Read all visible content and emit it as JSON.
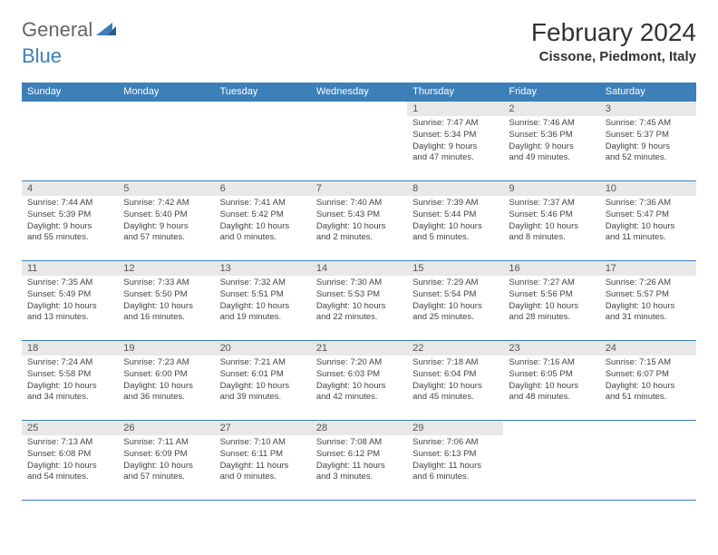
{
  "logo": {
    "text1": "General",
    "text2": "Blue"
  },
  "title": "February 2024",
  "location": "Cissone, Piedmont, Italy",
  "colors": {
    "header_bg": "#3d7fb8",
    "header_text": "#ffffff",
    "daynum_bg": "#e8e8e8",
    "row_border": "#3d7fb8",
    "body_text": "#444444"
  },
  "day_names": [
    "Sunday",
    "Monday",
    "Tuesday",
    "Wednesday",
    "Thursday",
    "Friday",
    "Saturday"
  ],
  "weeks": [
    [
      null,
      null,
      null,
      null,
      {
        "n": "1",
        "sunrise": "Sunrise: 7:47 AM",
        "sunset": "Sunset: 5:34 PM",
        "daylight1": "Daylight: 9 hours",
        "daylight2": "and 47 minutes."
      },
      {
        "n": "2",
        "sunrise": "Sunrise: 7:46 AM",
        "sunset": "Sunset: 5:36 PM",
        "daylight1": "Daylight: 9 hours",
        "daylight2": "and 49 minutes."
      },
      {
        "n": "3",
        "sunrise": "Sunrise: 7:45 AM",
        "sunset": "Sunset: 5:37 PM",
        "daylight1": "Daylight: 9 hours",
        "daylight2": "and 52 minutes."
      }
    ],
    [
      {
        "n": "4",
        "sunrise": "Sunrise: 7:44 AM",
        "sunset": "Sunset: 5:39 PM",
        "daylight1": "Daylight: 9 hours",
        "daylight2": "and 55 minutes."
      },
      {
        "n": "5",
        "sunrise": "Sunrise: 7:42 AM",
        "sunset": "Sunset: 5:40 PM",
        "daylight1": "Daylight: 9 hours",
        "daylight2": "and 57 minutes."
      },
      {
        "n": "6",
        "sunrise": "Sunrise: 7:41 AM",
        "sunset": "Sunset: 5:42 PM",
        "daylight1": "Daylight: 10 hours",
        "daylight2": "and 0 minutes."
      },
      {
        "n": "7",
        "sunrise": "Sunrise: 7:40 AM",
        "sunset": "Sunset: 5:43 PM",
        "daylight1": "Daylight: 10 hours",
        "daylight2": "and 2 minutes."
      },
      {
        "n": "8",
        "sunrise": "Sunrise: 7:39 AM",
        "sunset": "Sunset: 5:44 PM",
        "daylight1": "Daylight: 10 hours",
        "daylight2": "and 5 minutes."
      },
      {
        "n": "9",
        "sunrise": "Sunrise: 7:37 AM",
        "sunset": "Sunset: 5:46 PM",
        "daylight1": "Daylight: 10 hours",
        "daylight2": "and 8 minutes."
      },
      {
        "n": "10",
        "sunrise": "Sunrise: 7:36 AM",
        "sunset": "Sunset: 5:47 PM",
        "daylight1": "Daylight: 10 hours",
        "daylight2": "and 11 minutes."
      }
    ],
    [
      {
        "n": "11",
        "sunrise": "Sunrise: 7:35 AM",
        "sunset": "Sunset: 5:49 PM",
        "daylight1": "Daylight: 10 hours",
        "daylight2": "and 13 minutes."
      },
      {
        "n": "12",
        "sunrise": "Sunrise: 7:33 AM",
        "sunset": "Sunset: 5:50 PM",
        "daylight1": "Daylight: 10 hours",
        "daylight2": "and 16 minutes."
      },
      {
        "n": "13",
        "sunrise": "Sunrise: 7:32 AM",
        "sunset": "Sunset: 5:51 PM",
        "daylight1": "Daylight: 10 hours",
        "daylight2": "and 19 minutes."
      },
      {
        "n": "14",
        "sunrise": "Sunrise: 7:30 AM",
        "sunset": "Sunset: 5:53 PM",
        "daylight1": "Daylight: 10 hours",
        "daylight2": "and 22 minutes."
      },
      {
        "n": "15",
        "sunrise": "Sunrise: 7:29 AM",
        "sunset": "Sunset: 5:54 PM",
        "daylight1": "Daylight: 10 hours",
        "daylight2": "and 25 minutes."
      },
      {
        "n": "16",
        "sunrise": "Sunrise: 7:27 AM",
        "sunset": "Sunset: 5:56 PM",
        "daylight1": "Daylight: 10 hours",
        "daylight2": "and 28 minutes."
      },
      {
        "n": "17",
        "sunrise": "Sunrise: 7:26 AM",
        "sunset": "Sunset: 5:57 PM",
        "daylight1": "Daylight: 10 hours",
        "daylight2": "and 31 minutes."
      }
    ],
    [
      {
        "n": "18",
        "sunrise": "Sunrise: 7:24 AM",
        "sunset": "Sunset: 5:58 PM",
        "daylight1": "Daylight: 10 hours",
        "daylight2": "and 34 minutes."
      },
      {
        "n": "19",
        "sunrise": "Sunrise: 7:23 AM",
        "sunset": "Sunset: 6:00 PM",
        "daylight1": "Daylight: 10 hours",
        "daylight2": "and 36 minutes."
      },
      {
        "n": "20",
        "sunrise": "Sunrise: 7:21 AM",
        "sunset": "Sunset: 6:01 PM",
        "daylight1": "Daylight: 10 hours",
        "daylight2": "and 39 minutes."
      },
      {
        "n": "21",
        "sunrise": "Sunrise: 7:20 AM",
        "sunset": "Sunset: 6:03 PM",
        "daylight1": "Daylight: 10 hours",
        "daylight2": "and 42 minutes."
      },
      {
        "n": "22",
        "sunrise": "Sunrise: 7:18 AM",
        "sunset": "Sunset: 6:04 PM",
        "daylight1": "Daylight: 10 hours",
        "daylight2": "and 45 minutes."
      },
      {
        "n": "23",
        "sunrise": "Sunrise: 7:16 AM",
        "sunset": "Sunset: 6:05 PM",
        "daylight1": "Daylight: 10 hours",
        "daylight2": "and 48 minutes."
      },
      {
        "n": "24",
        "sunrise": "Sunrise: 7:15 AM",
        "sunset": "Sunset: 6:07 PM",
        "daylight1": "Daylight: 10 hours",
        "daylight2": "and 51 minutes."
      }
    ],
    [
      {
        "n": "25",
        "sunrise": "Sunrise: 7:13 AM",
        "sunset": "Sunset: 6:08 PM",
        "daylight1": "Daylight: 10 hours",
        "daylight2": "and 54 minutes."
      },
      {
        "n": "26",
        "sunrise": "Sunrise: 7:11 AM",
        "sunset": "Sunset: 6:09 PM",
        "daylight1": "Daylight: 10 hours",
        "daylight2": "and 57 minutes."
      },
      {
        "n": "27",
        "sunrise": "Sunrise: 7:10 AM",
        "sunset": "Sunset: 6:11 PM",
        "daylight1": "Daylight: 11 hours",
        "daylight2": "and 0 minutes."
      },
      {
        "n": "28",
        "sunrise": "Sunrise: 7:08 AM",
        "sunset": "Sunset: 6:12 PM",
        "daylight1": "Daylight: 11 hours",
        "daylight2": "and 3 minutes."
      },
      {
        "n": "29",
        "sunrise": "Sunrise: 7:06 AM",
        "sunset": "Sunset: 6:13 PM",
        "daylight1": "Daylight: 11 hours",
        "daylight2": "and 6 minutes."
      },
      null,
      null
    ]
  ]
}
